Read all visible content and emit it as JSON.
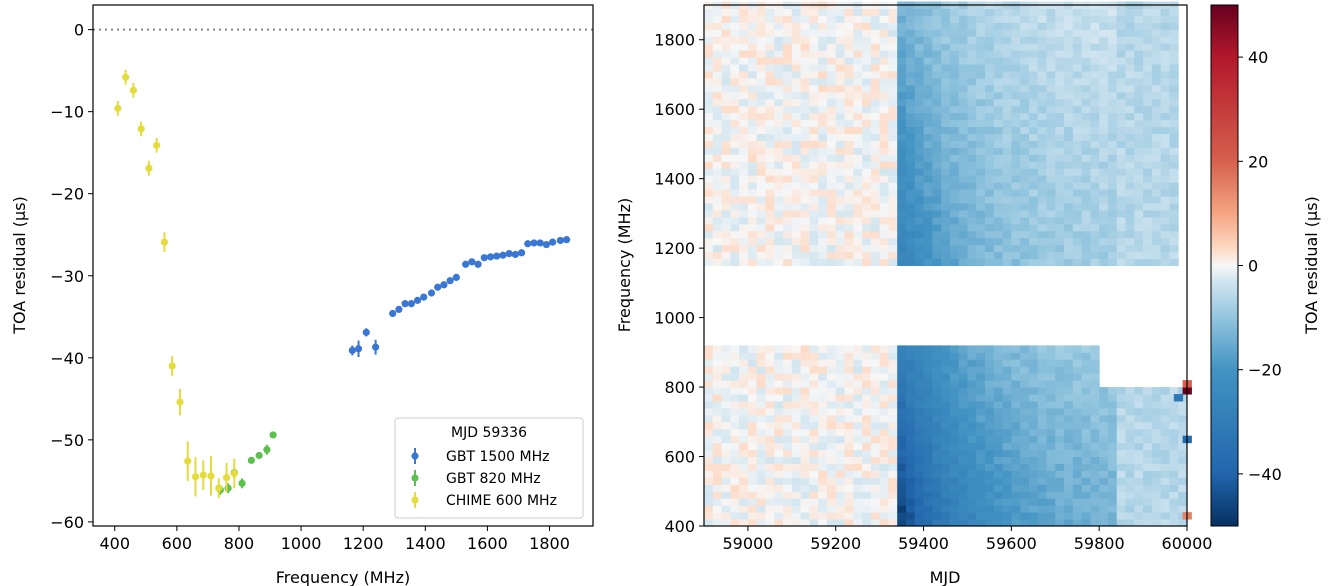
{
  "chart_data": [
    {
      "type": "scatter",
      "xlabel": "Frequency (MHz)",
      "ylabel": "TOA residual (μs)",
      "xlim": [
        330,
        1940
      ],
      "ylim": [
        -60.5,
        3
      ],
      "xticks": [
        400,
        600,
        800,
        1000,
        1200,
        1400,
        1600,
        1800
      ],
      "yticks": [
        0,
        -10,
        -20,
        -30,
        -40,
        -50,
        -60
      ],
      "xtick_labels": [
        "400",
        "600",
        "800",
        "1000",
        "1200",
        "1400",
        "1600",
        "1800"
      ],
      "ytick_labels": [
        "0",
        "−10",
        "−20",
        "−30",
        "−40",
        "−50",
        "−60"
      ],
      "zero_line": {
        "y": 0,
        "style": "dotted",
        "color": "#888888"
      },
      "grid": false,
      "legend": {
        "title": "MJD 59336",
        "placement": "lower-right"
      },
      "series": [
        {
          "name": "GBT 1500 MHz",
          "color": "#3a76d4",
          "x": [
            1165,
            1185,
            1210,
            1240,
            1295,
            1315,
            1335,
            1355,
            1375,
            1395,
            1420,
            1440,
            1460,
            1480,
            1500,
            1530,
            1550,
            1570,
            1590,
            1610,
            1630,
            1650,
            1670,
            1690,
            1710,
            1730,
            1750,
            1770,
            1790,
            1810,
            1835,
            1855
          ],
          "y": [
            -39.1,
            -38.9,
            -36.9,
            -38.7,
            -34.6,
            -34.1,
            -33.4,
            -33.4,
            -33.0,
            -32.6,
            -32.1,
            -31.4,
            -31.1,
            -30.6,
            -30.2,
            -28.6,
            -28.3,
            -28.6,
            -27.8,
            -27.7,
            -27.6,
            -27.5,
            -27.3,
            -27.4,
            -27.2,
            -26.1,
            -26.0,
            -26.0,
            -26.2,
            -25.9,
            -25.7,
            -25.6
          ],
          "yerr": [
            0.6,
            1.0,
            0.5,
            0.9,
            0.3,
            0.3,
            0.3,
            0.3,
            0.3,
            0.3,
            0.3,
            0.3,
            0.3,
            0.3,
            0.3,
            0.3,
            0.4,
            0.3,
            0.3,
            0.3,
            0.3,
            0.3,
            0.3,
            0.3,
            0.3,
            0.3,
            0.3,
            0.3,
            0.3,
            0.3,
            0.3,
            0.3
          ]
        },
        {
          "name": "GBT 820 MHz",
          "color": "#5cbf4e",
          "x": [
            740,
            765,
            785,
            810,
            840,
            865,
            890,
            910
          ],
          "y": [
            -56.1,
            -55.9,
            -54.0,
            -55.3,
            -52.5,
            -51.9,
            -51.2,
            -49.4
          ],
          "yerr": [
            0.6,
            0.6,
            0.6,
            0.6,
            0.3,
            0.3,
            0.6,
            0.3
          ]
        },
        {
          "name": "CHIME 600 MHz",
          "color": "#e3dc3c",
          "x": [
            410,
            435,
            460,
            485,
            510,
            535,
            560,
            585,
            610,
            635,
            660,
            685,
            710,
            735,
            760,
            785
          ],
          "y": [
            -9.6,
            -5.8,
            -7.4,
            -12.1,
            -16.9,
            -14.1,
            -25.9,
            -41.0,
            -45.4,
            -52.6,
            -54.5,
            -54.3,
            -54.4,
            -55.9,
            -54.6,
            -54.1
          ],
          "yerr": [
            0.9,
            0.9,
            0.9,
            0.9,
            0.9,
            0.9,
            1.2,
            1.2,
            1.6,
            2.4,
            2.4,
            1.8,
            2.4,
            1.2,
            1.8,
            1.8
          ]
        }
      ]
    },
    {
      "type": "heatmap",
      "xlabel": "MJD",
      "ylabel": "Frequency (MHz)",
      "xlim": [
        58900,
        60000
      ],
      "ylim": [
        400,
        1900
      ],
      "xticks": [
        59000,
        59200,
        59400,
        59600,
        59800,
        60000
      ],
      "yticks": [
        400,
        600,
        800,
        1000,
        1200,
        1400,
        1600,
        1800
      ],
      "xtick_labels": [
        "59000",
        "59200",
        "59400",
        "59600",
        "59800",
        "60000"
      ],
      "ytick_labels": [
        "400",
        "600",
        "800",
        "1000",
        "1200",
        "1400",
        "1600",
        "1800"
      ],
      "colormap": "RdBu_r",
      "colorbar": {
        "label": "TOA residual (μs)",
        "range": [
          -50,
          50
        ],
        "ticks": [
          -40,
          -20,
          0,
          20,
          40
        ],
        "tick_labels": [
          "−40",
          "−20",
          "0",
          "20",
          "40"
        ]
      },
      "column_width_mjd": 20,
      "bands": [
        {
          "freq_range": [
            400,
            920
          ],
          "mjd_range": [
            58900,
            60000
          ],
          "blocked_upper_right": {
            "from_mjd": 59800,
            "above_freq": 800
          }
        },
        {
          "freq_range": [
            1150,
            1900
          ],
          "mjd_range": [
            58900,
            59970
          ]
        }
      ],
      "empty_columns_mjd": [
        59310,
        59790
      ],
      "residual_profile": {
        "description": "near zero before MJD 59330, sharp negative step at ~59330 decaying to ~-5 by ~59900",
        "peak_low_band": -45,
        "peak_high_band": -28,
        "step_mjd": 59330
      },
      "outlier_cells": [
        {
          "mjd": 59990,
          "freq": 780,
          "value": 50
        },
        {
          "mjd": 59990,
          "freq": 800,
          "value": 20
        },
        {
          "mjd": 59970,
          "freq": 760,
          "value": -32
        },
        {
          "mjd": 59990,
          "freq": 640,
          "value": -38
        },
        {
          "mjd": 59990,
          "freq": 420,
          "value": 15
        }
      ]
    }
  ]
}
